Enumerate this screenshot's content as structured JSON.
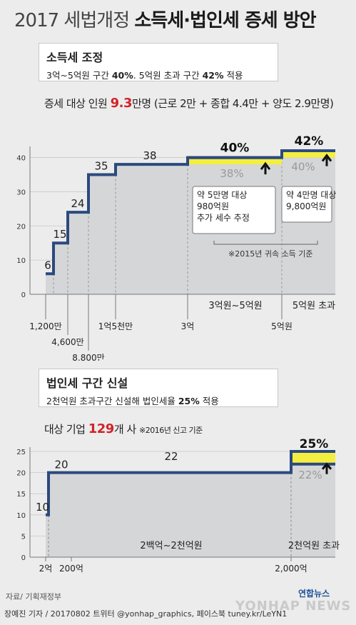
{
  "title": {
    "prefix": "2017 세법개정",
    "main": "소득세·법인세 증세 방안"
  },
  "income_box": {
    "heading": "소득세 조정",
    "line_parts": [
      "3억~5억원 구간 ",
      "40%",
      ". 5억원 초과 구간 ",
      "42%",
      " 적용"
    ]
  },
  "income_stat": {
    "pre": "증세 대상 인원 ",
    "num": "9.3",
    "post": "만명 (근로 2만 + 종합 4.4만 + 양도 2.9만명)"
  },
  "corp_box": {
    "heading": "법인세 구간 신설",
    "line_parts": [
      "2천억원 초과구간 신설해 법인세율 ",
      "25%",
      " 적용"
    ]
  },
  "corp_stat": {
    "pre": "대상 기업 ",
    "num": "129",
    "post": "개 사",
    "note": "※2016년 신고 기준"
  },
  "colors": {
    "line": "#2b4a7e",
    "highlight": "#f4ee40",
    "red": "#d0232a",
    "area": "#d5d6d8"
  },
  "chart_data": [
    {
      "type": "line",
      "subtype": "step",
      "ylim": [
        0,
        42
      ],
      "yticks": [
        0,
        10,
        20,
        30,
        40
      ],
      "brackets": [
        {
          "from": "1,200만",
          "to": "4,600만",
          "rate": 6
        },
        {
          "from": "4,600만",
          "to": "8,800만",
          "rate": 15
        },
        {
          "from": "8,800만",
          "to": "1억5천만",
          "rate": 24
        },
        {
          "from": "1억5천만",
          "to": "3억",
          "rate": 35
        },
        {
          "from": "3억",
          "to": "5억원",
          "rate": 38
        },
        {
          "from": "5억원",
          "to": "",
          "rate": 40
        }
      ],
      "x_tick_labels": [
        "1,200만",
        "4,600만",
        "8,800만",
        "1억5천만",
        "3억",
        "5억원"
      ],
      "new_rates": [
        {
          "zone": "3억원~5억원",
          "old": 38,
          "new": 40,
          "old_label": "38%",
          "new_label": "40%"
        },
        {
          "zone": "5억원 초과",
          "old": 40,
          "new": 42,
          "old_label": "40%",
          "new_label": "42%"
        }
      ],
      "value_labels": [
        "6",
        "15",
        "24",
        "35",
        "38"
      ],
      "zone_labels": [
        "3억원~5억원",
        "5억원 초과"
      ],
      "callouts": [
        {
          "lines": [
            "약 5만명 대상",
            "980억원",
            "추가 세수 추정"
          ],
          "bold": [
            "5만명",
            "980억원"
          ]
        },
        {
          "lines": [
            "약 4만명 대상",
            "9,800억원"
          ],
          "bold": [
            "4만명",
            "9,800억원"
          ]
        }
      ],
      "footnote": "※2015년 귀속 소득 기준"
    },
    {
      "type": "line",
      "subtype": "step",
      "ylim": [
        0,
        25
      ],
      "yticks": [
        0,
        5,
        10,
        15,
        20,
        25
      ],
      "brackets": [
        {
          "from": "2억",
          "to": "200억",
          "rate": 10
        },
        {
          "from": "200억",
          "to": "2,000억",
          "rate": 20
        },
        {
          "from": "2,000억",
          "to": "",
          "rate": 22
        }
      ],
      "x_tick_labels": [
        "2억",
        "200억",
        "2,000억"
      ],
      "value_labels": [
        "10",
        "20",
        "22"
      ],
      "new_rates": [
        {
          "zone": "2천억원 초과",
          "old": 22,
          "new": 25,
          "old_label": "22%",
          "new_label": "25%"
        }
      ],
      "zone_labels": [
        "2백억~2천억원",
        "2천억원 초과"
      ]
    }
  ],
  "footer": {
    "source": "자료/ 기획재정부",
    "credit": "장예진 기자 / 20170802 트위터 @yonhap_graphics, 페이스북 tuney.kr/LeYN1",
    "logo": "연합뉴스",
    "watermark": "YONHAP NEWS"
  }
}
